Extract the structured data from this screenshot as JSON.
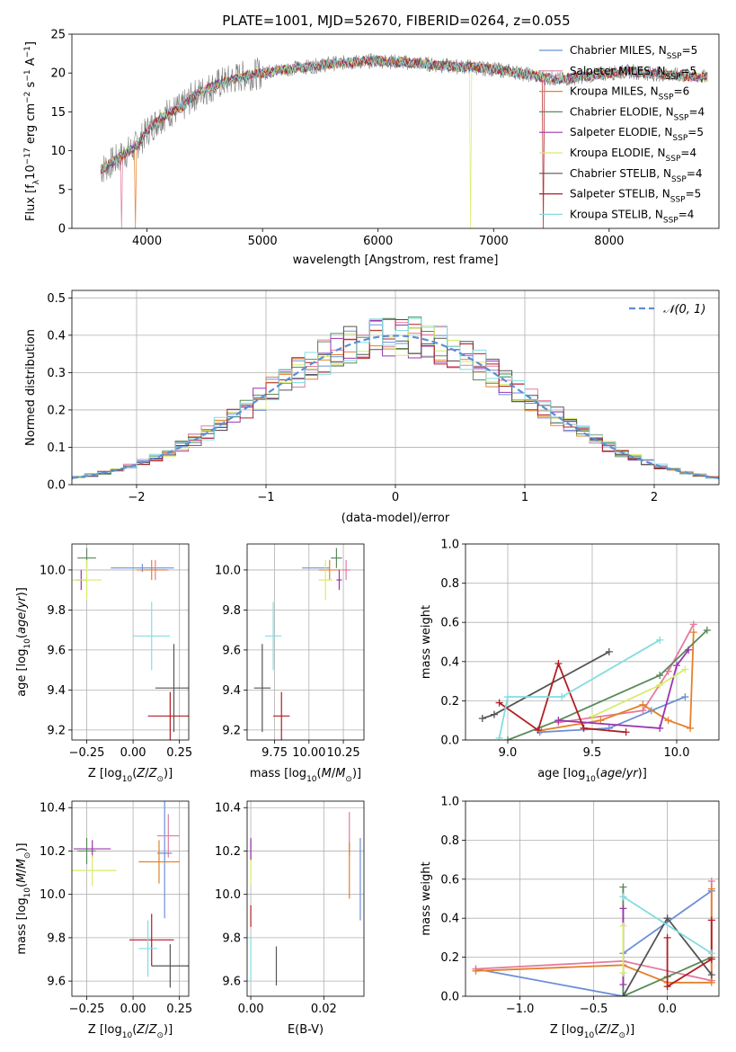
{
  "figure_title": "PLATE=1001, MJD=52670, FIBERID=0264, z=0.055",
  "colors": {
    "Chabrier MILES": "#6b8fd6",
    "Salpeter MILES": "#e37b9e",
    "Kroupa MILES": "#e4812b",
    "Chabrier ELODIE": "#5a8a5a",
    "Salpeter ELODIE": "#9b35b0",
    "Kroupa ELODIE": "#d7ec69",
    "Chabrier STELIB": "#555555",
    "Salpeter STELIB": "#b01f24",
    "Kroupa STELIB": "#82dde0"
  },
  "chart_data": [
    {
      "id": "spectrum",
      "type": "line",
      "title": "PLATE=1001, MJD=52670, FIBERID=0264, z=0.055",
      "xlabel": "wavelength [Angstrom, rest frame]",
      "ylabel": "Flux [f_λ10^-17 erg cm^-2 s^-1 A^-1]",
      "xlim": [
        3350,
        8950
      ],
      "ylim": [
        0,
        25
      ],
      "xticks": [
        4000,
        5000,
        6000,
        7000,
        8000
      ],
      "yticks": [
        0,
        5,
        10,
        15,
        20,
        25
      ],
      "grid": false,
      "legend_position": "top-right",
      "legend": [
        {
          "label": "Chabrier MILES, N_SSP=5",
          "color": "#6b8fd6"
        },
        {
          "label": "Salpeter MILES, N_SSP=5",
          "color": "#e37b9e"
        },
        {
          "label": "Kroupa MILES, N_SSP=6",
          "color": "#e4812b"
        },
        {
          "label": "Chabrier ELODIE, N_SSP=4",
          "color": "#5a8a5a"
        },
        {
          "label": "Salpeter ELODIE, N_SSP=5",
          "color": "#9b35b0"
        },
        {
          "label": "Kroupa ELODIE, N_SSP=4",
          "color": "#d7ec69"
        },
        {
          "label": "Chabrier STELIB, N_SSP=4",
          "color": "#555555"
        },
        {
          "label": "Salpeter STELIB, N_SSP=5",
          "color": "#b01f24"
        },
        {
          "label": "Kroupa STELIB, N_SSP=4",
          "color": "#82dde0"
        }
      ],
      "data_envelope": {
        "x": [
          3600,
          3700,
          3800,
          3900,
          4000,
          4100,
          4200,
          4300,
          4400,
          4500,
          4600,
          4700,
          4800,
          4900,
          5000,
          5100,
          5200,
          5300,
          5400,
          5500,
          5600,
          5700,
          5800,
          5900,
          6000,
          6100,
          6200,
          6300,
          6400,
          6500,
          6600,
          6700,
          6800,
          6900,
          7000,
          7100,
          7200,
          7300,
          7400,
          7500,
          7600,
          7700,
          7800,
          7900,
          8000,
          8100,
          8200,
          8300,
          8400,
          8500,
          8600,
          8700,
          8800,
          8900
        ],
        "y": [
          7.5,
          8.5,
          9.5,
          10.5,
          12.5,
          14.0,
          15.0,
          15.5,
          17.0,
          17.8,
          18.5,
          19.0,
          19.5,
          19.8,
          20.0,
          20.3,
          20.5,
          20.7,
          20.8,
          21.0,
          21.2,
          21.3,
          21.4,
          21.5,
          21.6,
          21.5,
          21.4,
          21.3,
          21.2,
          21.0,
          20.9,
          20.8,
          20.8,
          20.6,
          20.5,
          20.3,
          20.1,
          19.8,
          19.5,
          19.3,
          19.2,
          19.4,
          19.6,
          19.8,
          20.0,
          20.1,
          20.2,
          20.0,
          19.9,
          19.8,
          19.7,
          19.6,
          19.5,
          19.4
        ]
      },
      "notable_drops": [
        {
          "series": "Salpeter MILES",
          "x": 3780
        },
        {
          "series": "Kroupa MILES",
          "x": 3900
        },
        {
          "series": "Kroupa ELODIE",
          "x": 6800
        },
        {
          "series": "Salpeter STELIB",
          "x": 7430
        }
      ]
    },
    {
      "id": "residuals",
      "type": "histogram",
      "xlabel": "(data-model)/error",
      "ylabel": "Normed distribution",
      "xlim": [
        -2.5,
        2.5
      ],
      "ylim": [
        0,
        0.52
      ],
      "xticks": [
        -2,
        -1,
        0,
        1,
        2
      ],
      "yticks": [
        0.0,
        0.1,
        0.2,
        0.3,
        0.4,
        0.5
      ],
      "grid": true,
      "legend_position": "top-right",
      "legend": [
        {
          "label": "𝒩(0, 1)",
          "style": "dashed",
          "color": "#5b8fd4"
        }
      ],
      "bin_width": 0.1,
      "reference_curve": "normal(0,1)"
    },
    {
      "id": "age_vs_Z",
      "type": "errorbar",
      "xlabel": "Z [log10(Z/Z⊙)]",
      "ylabel": "age [log10(age/yr)]",
      "xlim": [
        -0.33,
        0.3
      ],
      "ylim": [
        9.15,
        10.13
      ],
      "xticks": [
        -0.25,
        0.0,
        0.25
      ],
      "yticks": [
        9.2,
        9.4,
        9.6,
        9.8,
        10.0
      ],
      "grid": true,
      "points": [
        {
          "series": "Chabrier MILES",
          "x": 0.05,
          "y": 10.01,
          "xerr": 0.17,
          "yerr": 0.02
        },
        {
          "series": "Salpeter MILES",
          "x": 0.12,
          "y": 10.0,
          "xerr": 0.07,
          "yerr": 0.05
        },
        {
          "series": "Kroupa MILES",
          "x": 0.1,
          "y": 10.0,
          "xerr": 0.08,
          "yerr": 0.05
        },
        {
          "series": "Chabrier ELODIE",
          "x": -0.25,
          "y": 10.06,
          "xerr": 0.05,
          "yerr": 0.05
        },
        {
          "series": "Salpeter ELODIE",
          "x": -0.28,
          "y": 9.95,
          "xerr": 0.03,
          "yerr": 0.05
        },
        {
          "series": "Kroupa ELODIE",
          "x": -0.25,
          "y": 9.95,
          "xerr": 0.08,
          "yerr": 0.1
        },
        {
          "series": "Chabrier STELIB",
          "x": 0.22,
          "y": 9.41,
          "xerr": 0.1,
          "yerr": 0.22
        },
        {
          "series": "Salpeter STELIB",
          "x": 0.2,
          "y": 9.27,
          "xerr": 0.12,
          "yerr": 0.12
        },
        {
          "series": "Kroupa STELIB",
          "x": 0.1,
          "y": 9.67,
          "xerr": 0.1,
          "yerr": 0.17
        }
      ]
    },
    {
      "id": "age_vs_mass",
      "type": "errorbar",
      "xlabel": "mass [log10(M/M⊙)]",
      "ylabel": "",
      "xlim": [
        9.55,
        10.4
      ],
      "ylim": [
        9.15,
        10.13
      ],
      "xticks": [
        9.75,
        10.0,
        10.25
      ],
      "yticks": [
        9.2,
        9.4,
        9.6,
        9.8,
        10.0
      ],
      "grid": true,
      "points": [
        {
          "series": "Chabrier MILES",
          "x": 10.05,
          "y": 10.01,
          "xerr": 0.1,
          "yerr": 0.0
        },
        {
          "series": "Salpeter MILES",
          "x": 10.27,
          "y": 10.0,
          "xerr": 0.03,
          "yerr": 0.05
        },
        {
          "series": "Kroupa MILES",
          "x": 10.15,
          "y": 10.0,
          "xerr": 0.08,
          "yerr": 0.05
        },
        {
          "series": "Chabrier ELODIE",
          "x": 10.2,
          "y": 10.06,
          "xerr": 0.04,
          "yerr": 0.05
        },
        {
          "series": "Salpeter ELODIE",
          "x": 10.22,
          "y": 9.95,
          "xerr": 0.02,
          "yerr": 0.05
        },
        {
          "series": "Kroupa ELODIE",
          "x": 10.12,
          "y": 9.95,
          "xerr": 0.05,
          "yerr": 0.1
        },
        {
          "series": "Chabrier STELIB",
          "x": 9.66,
          "y": 9.41,
          "xerr": 0.06,
          "yerr": 0.22
        },
        {
          "series": "Salpeter STELIB",
          "x": 9.8,
          "y": 9.27,
          "xerr": 0.06,
          "yerr": 0.12
        },
        {
          "series": "Kroupa STELIB",
          "x": 9.74,
          "y": 9.67,
          "xerr": 0.06,
          "yerr": 0.17
        }
      ]
    },
    {
      "id": "mass_weight_vs_age",
      "type": "line",
      "xlabel": "age [log10(age/yr)]",
      "ylabel": "mass weight",
      "xlim": [
        8.75,
        10.25
      ],
      "ylim": [
        0,
        1.0
      ],
      "xticks": [
        9.0,
        9.5,
        10.0
      ],
      "yticks": [
        0.0,
        0.2,
        0.4,
        0.6,
        0.8,
        1.0
      ],
      "grid": true,
      "series": [
        {
          "name": "Chabrier MILES",
          "x": [
            9.19,
            9.6,
            9.85,
            10.05
          ],
          "y": [
            0.04,
            0.06,
            0.15,
            0.22
          ]
        },
        {
          "name": "Salpeter MILES",
          "x": [
            9.3,
            9.8,
            9.95,
            10.1
          ],
          "y": [
            0.09,
            0.15,
            0.35,
            0.59
          ]
        },
        {
          "name": "Kroupa MILES",
          "x": [
            9.2,
            9.55,
            9.8,
            9.95,
            10.08,
            10.1
          ],
          "y": [
            0.05,
            0.1,
            0.18,
            0.1,
            0.06,
            0.55
          ]
        },
        {
          "name": "Chabrier ELODIE",
          "x": [
            9.0,
            9.3,
            9.9,
            10.18
          ],
          "y": [
            0.0,
            0.1,
            0.33,
            0.56
          ]
        },
        {
          "name": "Salpeter ELODIE",
          "x": [
            9.3,
            9.9,
            10.0,
            10.07
          ],
          "y": [
            0.1,
            0.06,
            0.38,
            0.46
          ]
        },
        {
          "name": "Kroupa ELODIE",
          "x": [
            9.5,
            9.9,
            10.05
          ],
          "y": [
            0.12,
            0.28,
            0.36
          ]
        },
        {
          "name": "Chabrier STELIB",
          "x": [
            8.85,
            8.92,
            9.6
          ],
          "y": [
            0.11,
            0.13,
            0.45
          ]
        },
        {
          "name": "Salpeter STELIB",
          "x": [
            8.95,
            9.18,
            9.3,
            9.45,
            9.7
          ],
          "y": [
            0.19,
            0.05,
            0.39,
            0.06,
            0.04
          ]
        },
        {
          "name": "Kroupa STELIB",
          "x": [
            8.95,
            9.0,
            9.32,
            9.9
          ],
          "y": [
            0.01,
            0.22,
            0.22,
            0.51
          ]
        }
      ]
    },
    {
      "id": "mass_vs_Z",
      "type": "errorbar",
      "xlabel": "Z [log10(Z/Z⊙)]",
      "ylabel": "mass [log10(M/M⊙)]",
      "xlim": [
        -0.33,
        0.3
      ],
      "ylim": [
        9.53,
        10.43
      ],
      "xticks": [
        -0.25,
        0.0,
        0.25
      ],
      "yticks": [
        9.6,
        9.8,
        10.0,
        10.2,
        10.4
      ],
      "grid": true,
      "points": [
        {
          "series": "Chabrier MILES",
          "x": 0.17,
          "y": 10.19,
          "xerr": 0.04,
          "yerr": 0.3
        },
        {
          "series": "Salpeter MILES",
          "x": 0.19,
          "y": 10.27,
          "xerr": 0.06,
          "yerr": 0.1
        },
        {
          "series": "Kroupa MILES",
          "x": 0.14,
          "y": 10.15,
          "xerr": 0.11,
          "yerr": 0.1
        },
        {
          "series": "Chabrier ELODIE",
          "x": -0.25,
          "y": 10.2,
          "xerr": 0.05,
          "yerr": 0.06
        },
        {
          "series": "Salpeter ELODIE",
          "x": -0.22,
          "y": 10.21,
          "xerr": 0.1,
          "yerr": 0.04
        },
        {
          "series": "Kroupa ELODIE",
          "x": -0.22,
          "y": 10.11,
          "xerr": 0.13,
          "yerr": 0.07
        },
        {
          "series": "Chabrier STELIB",
          "x": 0.2,
          "y": 9.67,
          "xerr": 0.1,
          "yerr": 0.1
        },
        {
          "series": "Salpeter STELIB",
          "x": 0.1,
          "y": 9.79,
          "xerr": 0.12,
          "yerr": 0.12
        },
        {
          "series": "Kroupa STELIB",
          "x": 0.08,
          "y": 9.75,
          "xerr": 0.05,
          "yerr": 0.13
        }
      ]
    },
    {
      "id": "mass_vs_EBV",
      "type": "errorbar",
      "xlabel": "E(B-V)",
      "ylabel": "",
      "xlim": [
        -0.001,
        0.031
      ],
      "ylim": [
        9.53,
        10.43
      ],
      "xticks": [
        0.0,
        0.02
      ],
      "yticks": [
        9.6,
        9.8,
        10.0,
        10.2,
        10.4
      ],
      "grid": true,
      "points": [
        {
          "series": "Chabrier MILES",
          "x": 0.03,
          "y": 10.07,
          "xerr": 0,
          "yerr": 0.19
        },
        {
          "series": "Salpeter MILES",
          "x": 0.027,
          "y": 10.28,
          "xerr": 0,
          "yerr": 0.1
        },
        {
          "series": "Kroupa MILES",
          "x": 0.027,
          "y": 10.11,
          "xerr": 0,
          "yerr": 0.13
        },
        {
          "series": "Chabrier ELODIE",
          "x": 0.0,
          "y": 10.2,
          "xerr": 0,
          "yerr": 0.05
        },
        {
          "series": "Salpeter ELODIE",
          "x": 0.0,
          "y": 10.21,
          "xerr": 0,
          "yerr": 0.05
        },
        {
          "series": "Kroupa ELODIE",
          "x": 0.0,
          "y": 10.1,
          "xerr": 0,
          "yerr": 0.06
        },
        {
          "series": "Chabrier STELIB",
          "x": 0.007,
          "y": 9.67,
          "xerr": 0,
          "yerr": 0.09
        },
        {
          "series": "Salpeter STELIB",
          "x": 0.0,
          "y": 9.9,
          "xerr": 0,
          "yerr": 0.05
        },
        {
          "series": "Kroupa STELIB",
          "x": 0.0,
          "y": 9.7,
          "xerr": 0,
          "yerr": 0.1
        }
      ]
    },
    {
      "id": "mass_weight_vs_Z",
      "type": "line",
      "xlabel": "Z [log10(Z/Z⊙)]",
      "ylabel": "mass weight",
      "xlim": [
        -1.37,
        0.35
      ],
      "ylim": [
        0,
        1.0
      ],
      "xticks": [
        -1.0,
        -0.5,
        0.0
      ],
      "yticks": [
        0.0,
        0.2,
        0.4,
        0.6,
        0.8,
        1.0
      ],
      "grid": true,
      "series": [
        {
          "name": "Chabrier MILES",
          "x": [
            -1.3,
            -0.3,
            -0.3,
            0.3
          ],
          "y": [
            0.14,
            0.0,
            0.22,
            0.54
          ]
        },
        {
          "name": "Salpeter MILES",
          "x": [
            -1.3,
            -0.3,
            0.3,
            0.3
          ],
          "y": [
            0.14,
            0.18,
            0.08,
            0.59
          ]
        },
        {
          "name": "Kroupa MILES",
          "x": [
            -1.3,
            -0.3,
            0.0,
            0.3,
            0.3
          ],
          "y": [
            0.13,
            0.16,
            0.07,
            0.07,
            0.55
          ]
        },
        {
          "name": "Chabrier ELODIE",
          "x": [
            -0.3,
            -0.3,
            0.0,
            0.3
          ],
          "y": [
            0.56,
            0.0,
            0.1,
            0.2
          ]
        },
        {
          "name": "Salpeter ELODIE",
          "x": [
            -0.3,
            -0.3
          ],
          "y": [
            0.45,
            0.06
          ]
        },
        {
          "name": "Kroupa ELODIE",
          "x": [
            -0.3,
            -0.3
          ],
          "y": [
            0.12,
            0.36
          ]
        },
        {
          "name": "Chabrier STELIB",
          "x": [
            -0.3,
            0.0,
            0.3
          ],
          "y": [
            0.0,
            0.4,
            0.11
          ]
        },
        {
          "name": "Salpeter STELIB",
          "x": [
            0.0,
            0.0,
            0.3,
            0.3
          ],
          "y": [
            0.3,
            0.05,
            0.19,
            0.39
          ]
        },
        {
          "name": "Kroupa STELIB",
          "x": [
            -0.3,
            0.3
          ],
          "y": [
            0.51,
            0.22
          ]
        }
      ]
    }
  ]
}
